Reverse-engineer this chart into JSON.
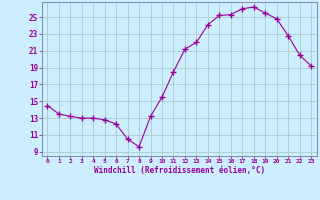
{
  "x": [
    0,
    1,
    2,
    3,
    4,
    5,
    6,
    7,
    8,
    9,
    10,
    11,
    12,
    13,
    14,
    15,
    16,
    17,
    18,
    19,
    20,
    21,
    22,
    23
  ],
  "y": [
    14.5,
    13.5,
    13.2,
    13.0,
    13.0,
    12.8,
    12.3,
    10.5,
    9.6,
    13.2,
    15.5,
    18.5,
    21.2,
    22.0,
    24.1,
    25.2,
    25.3,
    26.0,
    26.2,
    25.5,
    24.8,
    22.8,
    20.5,
    19.2
  ],
  "line_color": "#990099",
  "marker": "+",
  "marker_size": 4,
  "bg_color": "#cceeff",
  "grid_color": "#aacccc",
  "xlabel": "Windchill (Refroidissement éolien,°C)",
  "xlabel_color": "#990099",
  "tick_color": "#990099",
  "ylabel_ticks": [
    9,
    11,
    13,
    15,
    17,
    19,
    21,
    23,
    25
  ],
  "ylim": [
    8.5,
    26.8
  ],
  "xlim": [
    -0.5,
    23.5
  ],
  "xticks": [
    0,
    1,
    2,
    3,
    4,
    5,
    6,
    7,
    8,
    9,
    10,
    11,
    12,
    13,
    14,
    15,
    16,
    17,
    18,
    19,
    20,
    21,
    22,
    23
  ]
}
